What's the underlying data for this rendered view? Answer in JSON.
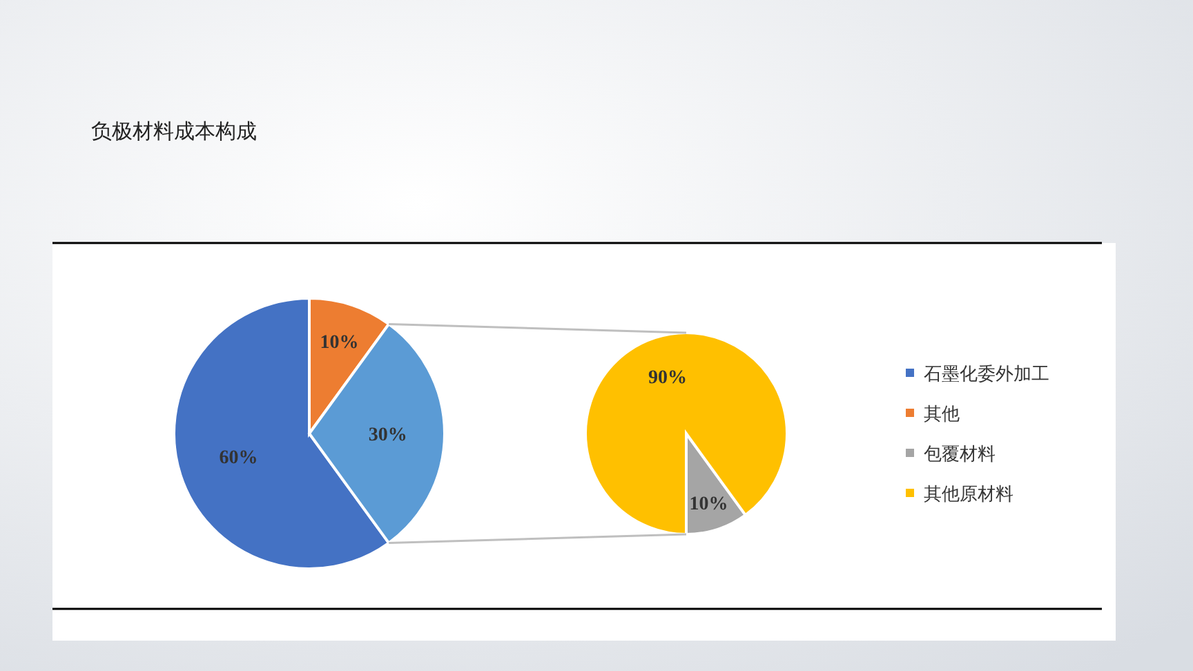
{
  "chart_data": [
    {
      "type": "pie",
      "title": "负极材料成本构成",
      "categories": [
        "石墨化委外加工",
        "其他",
        null
      ],
      "values": [
        60,
        10,
        30
      ],
      "colors": [
        "#4472c4",
        "#ed7d31",
        "#5b9bd5"
      ],
      "value_labels": [
        "60%",
        "10%",
        "30%"
      ],
      "legend": "right"
    },
    {
      "type": "pie",
      "categories": [
        "包覆材料",
        "其他原材料"
      ],
      "values": [
        10,
        90
      ],
      "colors": [
        "#a5a5a5",
        "#ffc000"
      ],
      "value_labels": [
        "10%",
        "90%"
      ],
      "legend": "right"
    }
  ]
}
